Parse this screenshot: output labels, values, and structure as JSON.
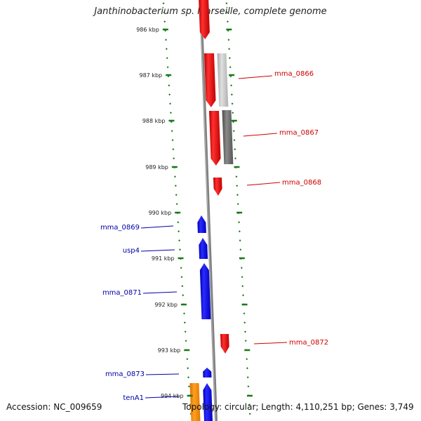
{
  "title": "Janthinobacterium sp. Marseille, complete genome",
  "footer": {
    "accession": "Accession: NC_009659",
    "summary": "Topology: circular; Length: 4,110,251 bp; Genes: 3,749"
  },
  "ticks": [
    "986 kbp",
    "987 kbp",
    "988 kbp",
    "989 kbp",
    "990 kbp",
    "991 kbp",
    "992 kbp",
    "993 kbp",
    "994 kbp"
  ],
  "colors": {
    "forward_gene": "#ff0000",
    "reverse_gene": "#0000ff",
    "other_gene": "#ff8c00",
    "forward_label": "#cc0000",
    "reverse_label": "#0000aa",
    "backbone": "#808080",
    "tick": "#1a7a1a"
  },
  "genes": [
    {
      "name": "mma_0866",
      "strand": "forward",
      "label": "mma_0866"
    },
    {
      "name": "mma_0867",
      "strand": "forward",
      "label": "mma_0867"
    },
    {
      "name": "mma_0868",
      "strand": "forward",
      "label": "mma_0868"
    },
    {
      "name": "mma_0869",
      "strand": "reverse",
      "label": "mma_0869"
    },
    {
      "name": "usp4",
      "strand": "reverse",
      "label": "usp4"
    },
    {
      "name": "mma_0871",
      "strand": "reverse",
      "label": "mma_0871"
    },
    {
      "name": "mma_0872",
      "strand": "forward",
      "label": "mma_0872"
    },
    {
      "name": "mma_0873",
      "strand": "reverse",
      "label": "mma_0873"
    },
    {
      "name": "tenA1",
      "strand": "reverse",
      "label": "tenA1"
    }
  ]
}
